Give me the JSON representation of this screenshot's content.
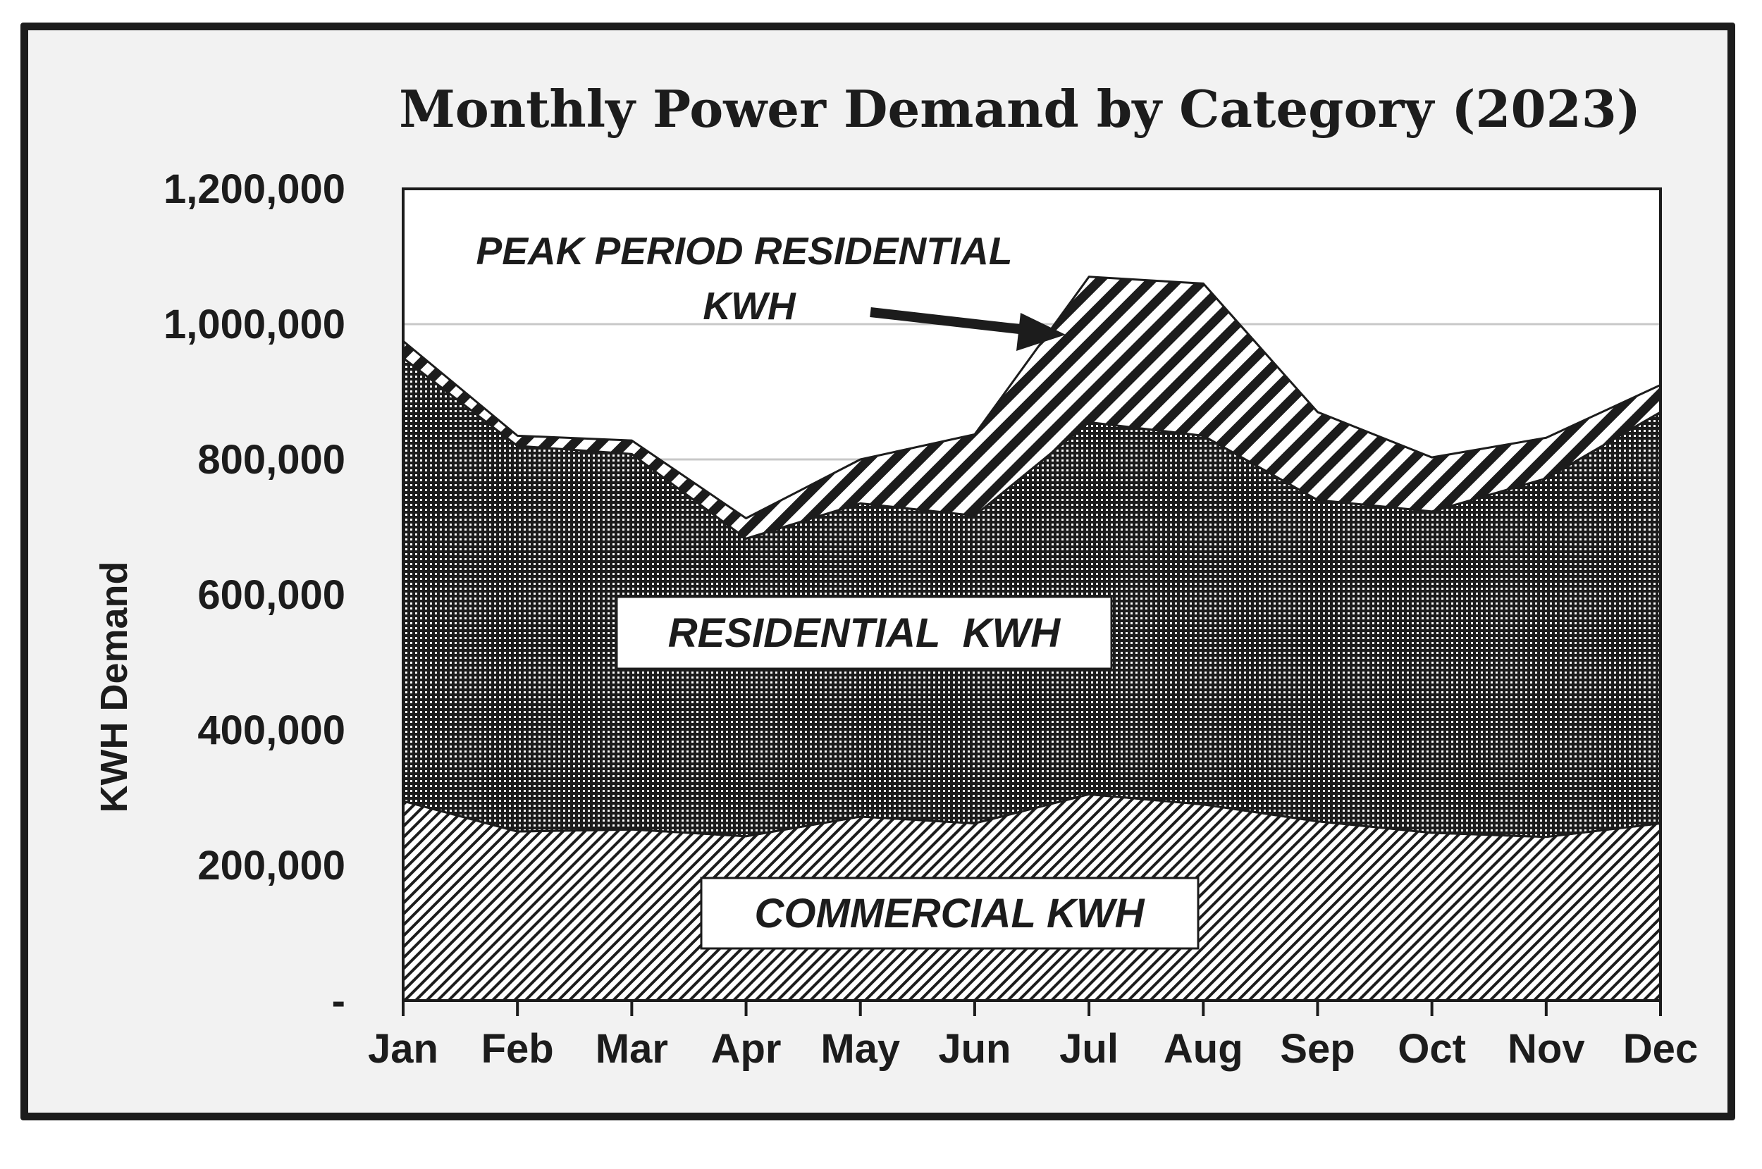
{
  "chart_data": {
    "type": "area",
    "stacked": true,
    "title": "Monthly Power Demand by Category (2023)",
    "xlabel": "",
    "ylabel": "KWH Demand",
    "ylim": [
      0,
      1200000
    ],
    "yticks": [
      0,
      200000,
      400000,
      600000,
      800000,
      1000000,
      1200000
    ],
    "ytick_labels": [
      "-",
      "200,000",
      "400,000",
      "600,000",
      "800,000",
      "1,000,000",
      "1,200,000"
    ],
    "gridlines": true,
    "categories": [
      "Jan",
      "Feb",
      "Mar",
      "Apr",
      "May",
      "Jun",
      "Jul",
      "Aug",
      "Sep",
      "Oct",
      "Nov",
      "Dec"
    ],
    "series": [
      {
        "name": "COMMERCIAL KWH",
        "pattern": "fine-diagonal-hatch",
        "values": [
          295000,
          250000,
          253000,
          243000,
          272000,
          262000,
          305000,
          290000,
          265000,
          248000,
          242000,
          262000
        ]
      },
      {
        "name": "RESIDENTIAL KWH",
        "pattern": "dense-crosshatch",
        "values": [
          655000,
          570000,
          555000,
          440000,
          463000,
          455000,
          550000,
          545000,
          475000,
          475000,
          530000,
          608000
        ]
      },
      {
        "name": "PEAK PERIOD RESIDENTIAL KWH",
        "pattern": "bold-diagonal-stripes",
        "values": [
          25000,
          15000,
          20000,
          30000,
          65000,
          120000,
          215000,
          225000,
          130000,
          80000,
          60000,
          40000
        ]
      }
    ],
    "annotations": [
      {
        "text_line1": "PEAK PERIOD RESIDENTIAL",
        "text_line2": "KWH",
        "points_to": "Jul",
        "style": "arrow"
      },
      {
        "text": "RESIDENTIAL  KWH",
        "style": "boxed"
      },
      {
        "text": "COMMERCIAL KWH",
        "style": "boxed"
      }
    ],
    "colors": {
      "frame": "#1c1c1c",
      "panel": "#f2f2f2",
      "plot_bg": "#ffffff",
      "grid": "#c8c8c8",
      "ink": "#1c1c1c"
    }
  }
}
